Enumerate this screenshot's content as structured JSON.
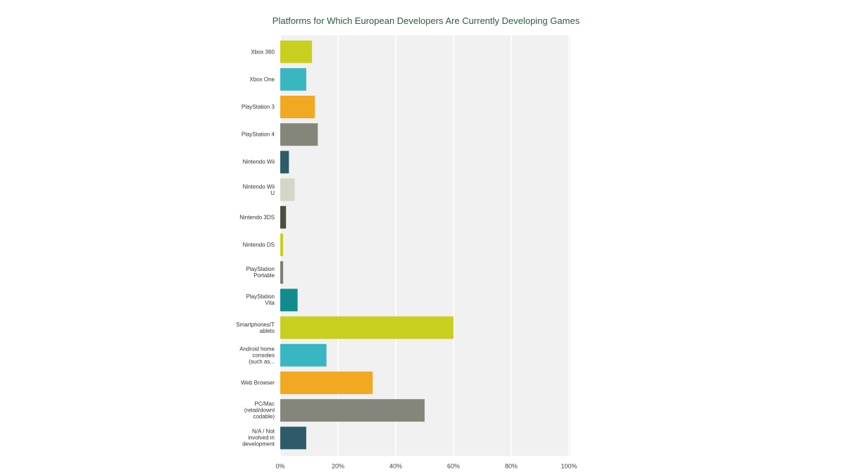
{
  "chart_data": {
    "type": "bar",
    "orientation": "horizontal",
    "title": "Platforms for Which European Developers Are Currently Developing Games",
    "categories": [
      "Xbox 360",
      "Xbox One",
      "PlayStation 3",
      "PlayStation 4",
      "Nintendo Wii",
      "Nintendo Wii\nU",
      "Nintendo 3DS",
      "Nintendo DS",
      "PlayStation\nPortable",
      "PlayStation\nVita",
      "Smartphones/T\nablets",
      "Android home\nconsoles\n(such as...",
      "Web Browser",
      "PC/Mac\n(retail/downl\ncodable)",
      "N/A / Not\ninvolved in\ndevelopment"
    ],
    "values": [
      11,
      9,
      12,
      13,
      3,
      5,
      2,
      1,
      1,
      6,
      60,
      16,
      32,
      50,
      9
    ],
    "colors": [
      "#c9cf1f",
      "#38b6c2",
      "#f1a922",
      "#85867a",
      "#2d5b69",
      "#d6d6c8",
      "#4d4d40",
      "#c9cf1f",
      "#7d7d70",
      "#108c8c",
      "#c9cf1f",
      "#38b6c2",
      "#f1a922",
      "#85867a",
      "#2d5b69"
    ],
    "xlim": [
      0,
      100
    ],
    "xticks": [
      {
        "value": 0,
        "label": "0%"
      },
      {
        "value": 20,
        "label": "20%"
      },
      {
        "value": 40,
        "label": "40%"
      },
      {
        "value": 60,
        "label": "60%"
      },
      {
        "value": 80,
        "label": "80%"
      },
      {
        "value": 100,
        "label": "100%"
      }
    ],
    "grid": true
  }
}
